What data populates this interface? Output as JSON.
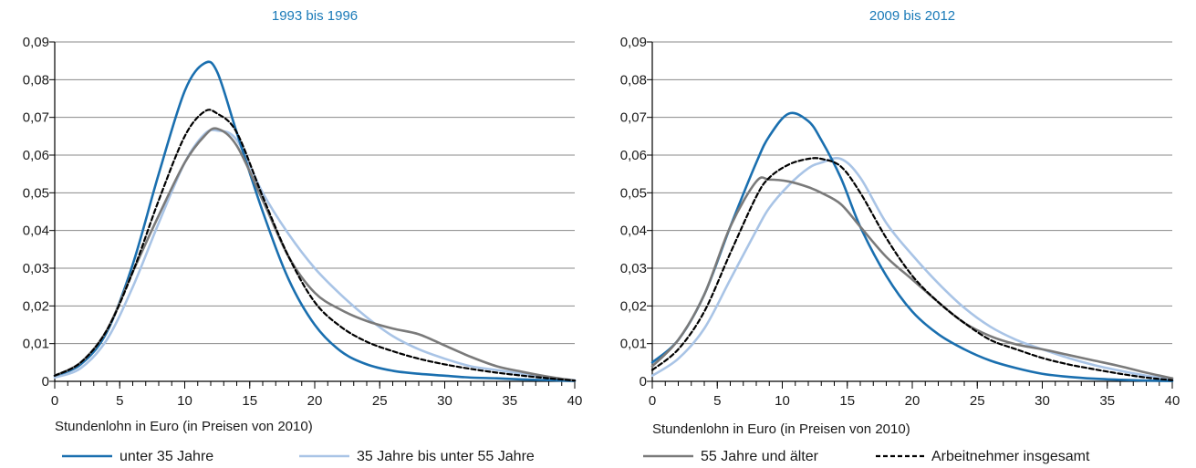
{
  "colors": {
    "title": "#1a7ab8",
    "grid": "#8a8a8a",
    "axis": "#000000",
    "text": "#1a1a1a"
  },
  "legend": [
    {
      "label": "unter 35 Jahre",
      "color": "#1a6faf",
      "dash": "solid"
    },
    {
      "label": "35 Jahre bis unter 55 Jahre",
      "color": "#a9c4e6",
      "dash": "solid"
    },
    {
      "label": "55 Jahre und älter",
      "color": "#7a7a7a",
      "dash": "solid"
    },
    {
      "label": "Arbeitnehmer insgesamt",
      "color": "#000000",
      "dash": "dashed"
    }
  ],
  "chart_data": [
    {
      "type": "line",
      "title": "1993 bis 1996",
      "xlabel": "Stundenlohn in Euro (in Preisen von 2010)",
      "ylabel": "",
      "xlim": [
        0,
        40
      ],
      "ylim": [
        0,
        0.09
      ],
      "xticks": [
        "0",
        "5",
        "10",
        "15",
        "20",
        "25",
        "30",
        "35",
        "40"
      ],
      "yticks": [
        "0",
        "0,01",
        "0,02",
        "0,03",
        "0,04",
        "0,05",
        "0,06",
        "0,07",
        "0,08",
        "0,09"
      ],
      "grid": true,
      "x": [
        0,
        2,
        4,
        6,
        8,
        10,
        11.5,
        12.5,
        14,
        16,
        18,
        20,
        22,
        24,
        26,
        28,
        30,
        32,
        34,
        36,
        38,
        40
      ],
      "series": [
        {
          "name": "unter 35 Jahre",
          "values": [
            0.0015,
            0.0045,
            0.013,
            0.031,
            0.055,
            0.077,
            0.0843,
            0.082,
            0.066,
            0.045,
            0.027,
            0.015,
            0.008,
            0.0045,
            0.0028,
            0.002,
            0.0015,
            0.001,
            0.0008,
            0.0005,
            0.0003,
            0.0001
          ]
        },
        {
          "name": "35 Jahre bis unter 55 Jahre",
          "values": [
            0.001,
            0.0035,
            0.011,
            0.025,
            0.042,
            0.058,
            0.0655,
            0.0665,
            0.064,
            0.05,
            0.039,
            0.03,
            0.023,
            0.017,
            0.012,
            0.0085,
            0.006,
            0.004,
            0.003,
            0.002,
            0.001,
            0.0003
          ]
        },
        {
          "name": "55 Jahre und älter",
          "values": [
            0.0015,
            0.005,
            0.0135,
            0.029,
            0.044,
            0.058,
            0.065,
            0.067,
            0.0625,
            0.048,
            0.033,
            0.0235,
            0.019,
            0.016,
            0.014,
            0.0125,
            0.0095,
            0.0065,
            0.004,
            0.0025,
            0.0012,
            0.0002
          ]
        },
        {
          "name": "Arbeitnehmer insgesamt",
          "values": [
            0.0015,
            0.005,
            0.0135,
            0.029,
            0.048,
            0.065,
            0.0715,
            0.071,
            0.066,
            0.049,
            0.033,
            0.021,
            0.0145,
            0.0105,
            0.008,
            0.006,
            0.0045,
            0.0033,
            0.0023,
            0.0015,
            0.0008,
            0.0002
          ]
        }
      ]
    },
    {
      "type": "line",
      "title": "2009 bis 2012",
      "xlabel": "Stundenlohn in Euro (in Preisen von 2010)",
      "ylabel": "",
      "xlim": [
        0,
        40
      ],
      "ylim": [
        0,
        0.09
      ],
      "xticks": [
        "0",
        "5",
        "10",
        "15",
        "20",
        "25",
        "30",
        "35",
        "40"
      ],
      "yticks": [
        "0",
        "0,01",
        "0,02",
        "0,03",
        "0,04",
        "0,05",
        "0,06",
        "0,07",
        "0,08",
        "0,09"
      ],
      "grid": true,
      "x": [
        0,
        2,
        4,
        6,
        8,
        9,
        10.5,
        12,
        13,
        14.5,
        16,
        18,
        20,
        22,
        24,
        26,
        28,
        30,
        32,
        34,
        36,
        38,
        40
      ],
      "series": [
        {
          "name": "unter 35 Jahre",
          "values": [
            0.005,
            0.011,
            0.023,
            0.041,
            0.058,
            0.065,
            0.071,
            0.069,
            0.064,
            0.054,
            0.041,
            0.028,
            0.0185,
            0.0125,
            0.0085,
            0.0055,
            0.0035,
            0.002,
            0.0012,
            0.0007,
            0.0004,
            0.0002,
            0.0001
          ]
        },
        {
          "name": "35 Jahre bis unter 55 Jahre",
          "values": [
            0.0015,
            0.006,
            0.014,
            0.027,
            0.04,
            0.046,
            0.052,
            0.0565,
            0.058,
            0.059,
            0.054,
            0.042,
            0.0335,
            0.026,
            0.0195,
            0.0145,
            0.011,
            0.0085,
            0.0062,
            0.0043,
            0.0028,
            0.0015,
            0.0005
          ]
        },
        {
          "name": "55 Jahre und älter",
          "values": [
            0.004,
            0.011,
            0.023,
            0.041,
            0.053,
            0.0535,
            0.053,
            0.0515,
            0.05,
            0.047,
            0.041,
            0.033,
            0.027,
            0.021,
            0.0155,
            0.012,
            0.0098,
            0.0085,
            0.007,
            0.0055,
            0.004,
            0.0023,
            0.0008
          ]
        },
        {
          "name": "Arbeitnehmer insgesamt",
          "values": [
            0.003,
            0.0085,
            0.0185,
            0.034,
            0.049,
            0.054,
            0.0575,
            0.059,
            0.059,
            0.057,
            0.05,
            0.038,
            0.028,
            0.021,
            0.0155,
            0.011,
            0.0085,
            0.0062,
            0.0045,
            0.0032,
            0.002,
            0.001,
            0.0003
          ]
        }
      ]
    }
  ]
}
